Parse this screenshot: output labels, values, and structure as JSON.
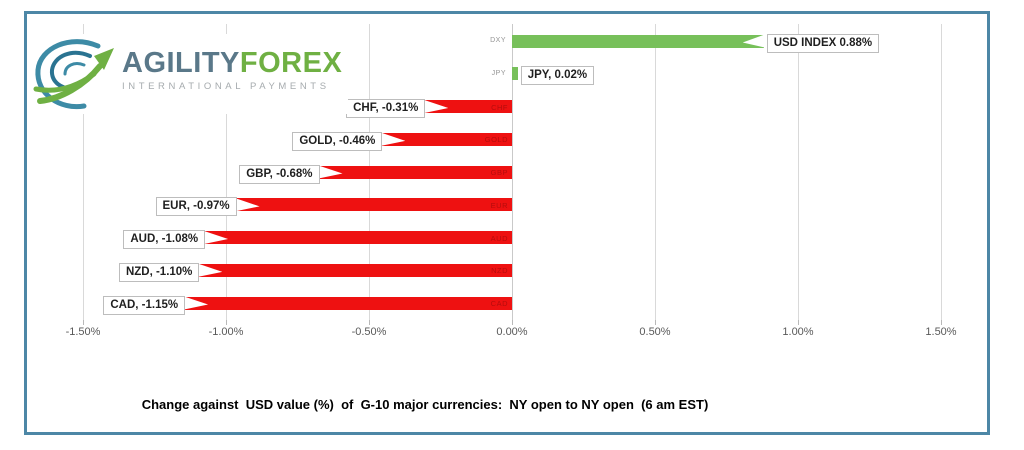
{
  "logo": {
    "brand_primary": "AGILITY",
    "brand_secondary": "FOREX",
    "tagline": "INTERNATIONAL PAYMENTS",
    "colors": {
      "brand_primary": "#5a7889",
      "brand_secondary": "#6fb043",
      "tagline": "#a6abae",
      "globe_teal": "#3d8ba6",
      "globe_dark_teal": "#2a7391",
      "globe_green": "#6fb043"
    }
  },
  "chart_data": {
    "type": "bar",
    "orientation": "horizontal",
    "categories": [
      "DXY",
      "JPY",
      "CHF",
      "GOLD",
      "GBP",
      "EUR",
      "AUD",
      "NZD",
      "CAD"
    ],
    "values": [
      0.88,
      0.02,
      -0.31,
      -0.46,
      -0.68,
      -0.97,
      -1.08,
      -1.1,
      -1.15
    ],
    "data_labels": [
      "USD INDEX 0.88%",
      "JPY, 0.02%",
      "CHF, -0.31%",
      "GOLD, -0.46%",
      "GBP, -0.68%",
      "EUR, -0.97%",
      "AUD, -1.08%",
      "NZD, -1.10%",
      "CAD, -1.15%"
    ],
    "positive_color": "#77c05a",
    "negative_color": "#ee1111",
    "xlim": [
      -1.5,
      1.5
    ],
    "x_tick_values": [
      -1.5,
      -1.0,
      -0.5,
      0,
      0.5,
      1.0,
      1.5
    ],
    "x_tick_labels": [
      "-1.50%",
      "-1.00%",
      "-0.50%",
      "0.00%",
      "0.50%",
      "1.00%",
      "1.50%"
    ],
    "grid": true,
    "gridline_color": "#d9d9d9",
    "zero_line_color": "#c9c9c9",
    "legend": "none",
    "title": "",
    "caption": "Change against  USD value (%)  of  G-10 major currencies:  NY open to NY open  (6 am EST)"
  },
  "frame": {
    "border_color": "#4d87a6"
  }
}
